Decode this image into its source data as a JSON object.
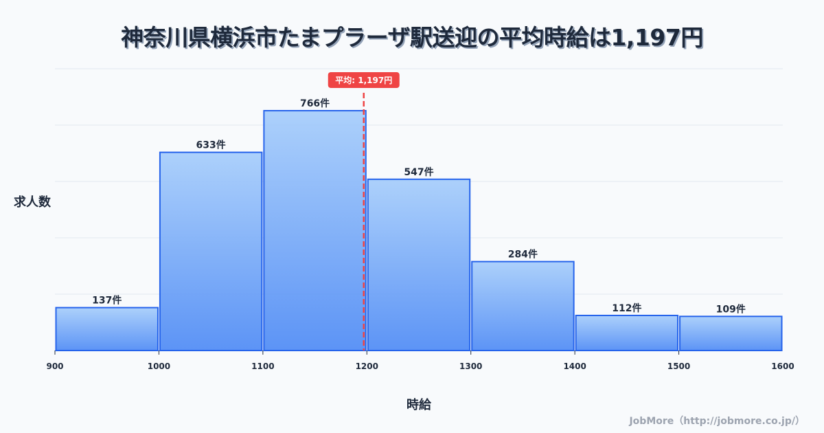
{
  "title": "神奈川県横浜市たまプラーザ駅送迎の平均時給は1,197円",
  "y_axis_label": "求人数",
  "x_axis_label": "時給",
  "credit": "JobMore（http://jobmore.co.jp/）",
  "average_badge": "平均: 1,197円",
  "colors": {
    "background": "#f8fafc",
    "bar_top": "#a6cdfb",
    "bar_bottom": "#4f8bf5",
    "bar_stroke": "#2563eb",
    "average_line": "#ef4444",
    "gridline": "#e2e8f0",
    "text": "#1e293b",
    "credit": "#9ca3af"
  },
  "chart_data": {
    "type": "bar",
    "subtype": "histogram",
    "title": "神奈川県横浜市たまプラーザ駅送迎の平均時給は1,197円",
    "xlabel": "時給",
    "ylabel": "求人数",
    "bins": [
      {
        "start": 900,
        "end": 1000,
        "count": 137,
        "label": "137件"
      },
      {
        "start": 1000,
        "end": 1100,
        "count": 633,
        "label": "633件"
      },
      {
        "start": 1100,
        "end": 1200,
        "count": 766,
        "label": "766件"
      },
      {
        "start": 1200,
        "end": 1300,
        "count": 547,
        "label": "547件"
      },
      {
        "start": 1300,
        "end": 1400,
        "count": 284,
        "label": "284件"
      },
      {
        "start": 1400,
        "end": 1500,
        "count": 112,
        "label": "112件"
      },
      {
        "start": 1500,
        "end": 1600,
        "count": 109,
        "label": "109件"
      }
    ],
    "categories": [
      "900-1000",
      "1000-1100",
      "1100-1200",
      "1200-1300",
      "1300-1400",
      "1400-1500",
      "1500-1600"
    ],
    "values": [
      137,
      633,
      766,
      547,
      284,
      112,
      109
    ],
    "x_ticks": [
      900,
      1000,
      1100,
      1200,
      1300,
      1400,
      1500,
      1600
    ],
    "xlim": [
      900,
      1600
    ],
    "ylim": [
      0,
      900
    ],
    "grid": {
      "horizontal": true,
      "vertical": false,
      "lines": 5
    },
    "y_tick_labels_shown": false,
    "annotations": [
      {
        "type": "vline",
        "x": 1197,
        "style": "dashed",
        "color": "#ef4444",
        "label": "平均: 1,197円"
      }
    ],
    "legend": null
  }
}
